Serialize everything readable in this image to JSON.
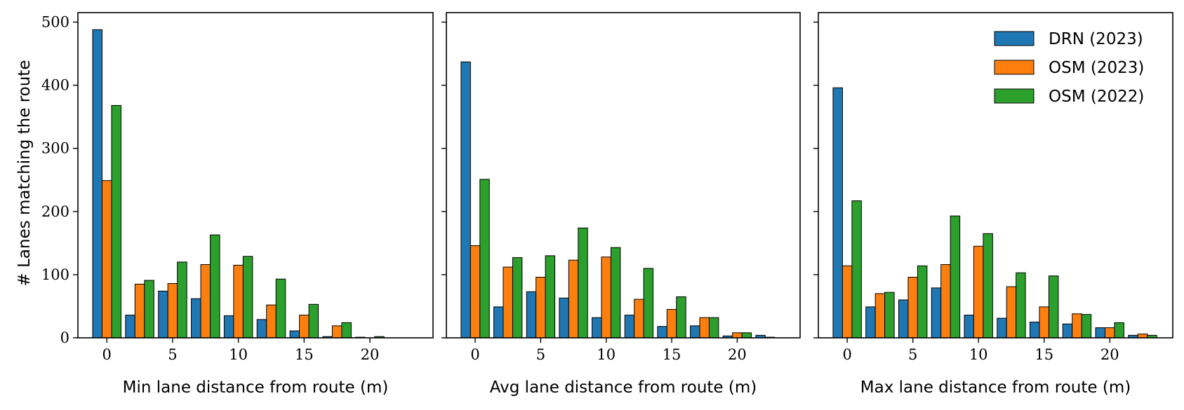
{
  "chart_data": {
    "type": "bar",
    "ylabel": "# Lanes matching the route",
    "ylim": [
      0,
      515
    ],
    "yticks": [
      0,
      100,
      200,
      300,
      400,
      500
    ],
    "xlim": [
      -2.2,
      24.8
    ],
    "xticks": [
      0,
      5,
      10,
      15,
      20
    ],
    "bin_centers": [
      0,
      2.5,
      5,
      7.5,
      10,
      12.5,
      15,
      17.5,
      20,
      22.5
    ],
    "bar_width": 0.72,
    "grid": false,
    "legend_location": "top-right",
    "series_meta": [
      {
        "name": "DRN (2023)",
        "color": "#1f77b4"
      },
      {
        "name": "OSM (2023)",
        "color": "#ff7f0e"
      },
      {
        "name": "OSM (2022)",
        "color": "#2ca02c"
      }
    ],
    "panels": [
      {
        "xlabel": "Min lane distance from route (m)",
        "series": [
          {
            "name": "DRN (2023)",
            "values": [
              488,
              36,
              74,
              62,
              35,
              29,
              11,
              2,
              1,
              0
            ]
          },
          {
            "name": "OSM (2023)",
            "values": [
              249,
              85,
              86,
              116,
              115,
              52,
              36,
              19,
              0,
              0
            ]
          },
          {
            "name": "OSM (2022)",
            "values": [
              368,
              91,
              120,
              163,
              129,
              93,
              53,
              24,
              2,
              0
            ]
          }
        ]
      },
      {
        "xlabel": "Avg lane distance from route (m)",
        "series": [
          {
            "name": "DRN (2023)",
            "values": [
              437,
              49,
              73,
              63,
              32,
              36,
              18,
              19,
              3,
              4
            ]
          },
          {
            "name": "OSM (2023)",
            "values": [
              146,
              112,
              96,
              123,
              128,
              61,
              45,
              32,
              8,
              1
            ]
          },
          {
            "name": "OSM (2022)",
            "values": [
              251,
              127,
              130,
              174,
              143,
              110,
              65,
              32,
              8,
              0
            ]
          }
        ]
      },
      {
        "xlabel": "Max lane distance from route (m)",
        "series": [
          {
            "name": "DRN (2023)",
            "values": [
              396,
              49,
              60,
              79,
              36,
              31,
              25,
              22,
              16,
              4
            ]
          },
          {
            "name": "OSM (2023)",
            "values": [
              114,
              70,
              96,
              116,
              145,
              81,
              49,
              38,
              16,
              6
            ]
          },
          {
            "name": "OSM (2022)",
            "values": [
              217,
              72,
              114,
              193,
              165,
              103,
              98,
              37,
              24,
              4
            ]
          }
        ]
      }
    ]
  }
}
